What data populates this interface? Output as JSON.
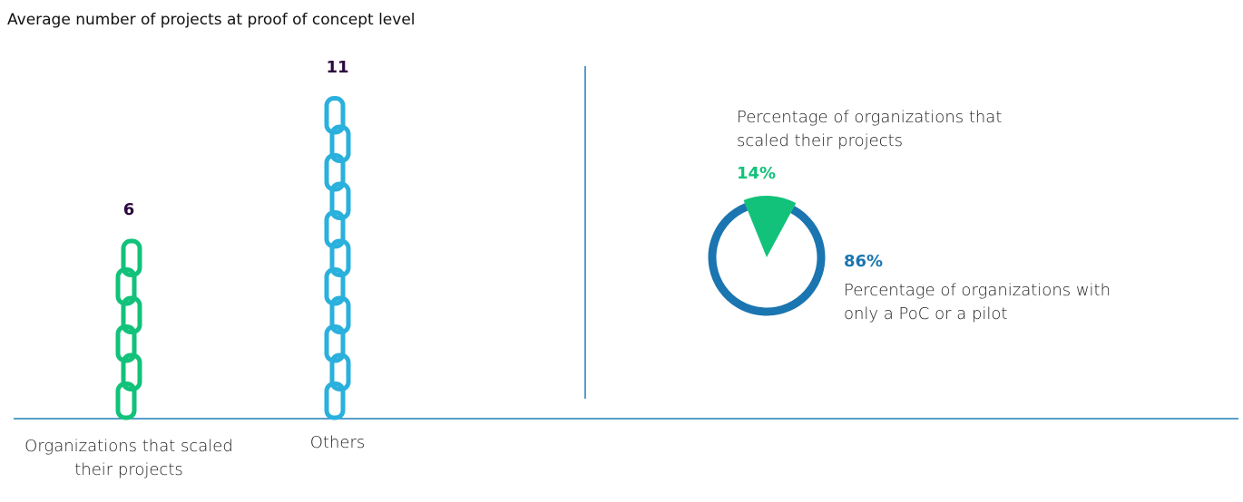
{
  "chart_data": [
    {
      "type": "pictograph",
      "title": "Average number of projects at proof of concept level",
      "categories": [
        "Organizations that scaled their projects",
        "Others"
      ],
      "values": [
        6,
        11
      ],
      "colors": [
        "#12c27a",
        "#2ab0dc"
      ]
    },
    {
      "type": "pie",
      "categories": [
        "Percentage of organizations that scaled their projects",
        "Percentage of organizations with only a PoC or a pilot"
      ],
      "values": [
        14,
        86
      ],
      "value_labels": [
        "14%",
        "86%"
      ],
      "colors": [
        "#12c27a",
        "#1a75b0"
      ]
    }
  ]
}
